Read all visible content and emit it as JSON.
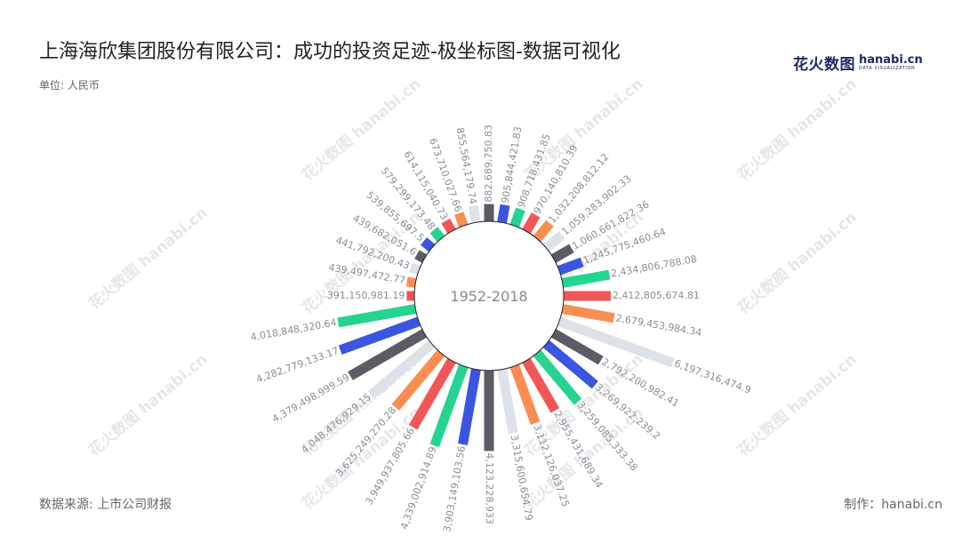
{
  "header": {
    "title": "上海海欣集团股份有限公司：成功的投资足迹-极坐标图-数据可视化",
    "unit": "单位: 人民币"
  },
  "logo": {
    "cn": "花火数图",
    "en": "hanabi.cn",
    "en_sub": "DATA VISUALIZATION"
  },
  "watermark": {
    "text": "花火数图 hanabi.cn"
  },
  "footer": {
    "source": "数据来源: 上市公司财报",
    "maker": "制作：hanabi.cn"
  },
  "colors": {
    "cycle": [
      "#5b5c66",
      "#3a55e0",
      "#24d48f",
      "#f25757",
      "#fa8e52",
      "#dde2ea"
    ],
    "center_circle": "#ffffff",
    "center_stroke": "#222222",
    "label": "#8c8e99",
    "watermark": "#e7e7ea"
  },
  "chart_data": {
    "type": "bar",
    "polar": true,
    "center_label": "1952-2018",
    "values": [
      882689750.83,
      905844421.83,
      908718431.85,
      970140810.39,
      1032208812.12,
      1059283902.33,
      1060661822.36,
      1245775460.64,
      2434806788.08,
      2412805674.81,
      2679453984.34,
      6197316474.9,
      2792200982.41,
      3269922239.2,
      3259085333.38,
      2955431689.34,
      3112126037.25,
      3315600654.79,
      4123228933,
      3903149103.56,
      4339002914.89,
      3949937805.66,
      3625249270.28,
      4048476929.15,
      4379498999.59,
      4282779133.17,
      4018848320.64,
      391150981.19,
      439497472.77,
      441792200.43,
      439682051.6,
      539855697.5,
      579299173.48,
      614115040.73,
      673710027.66,
      855564179.74
    ],
    "labels": [
      "882,689,750.83",
      "905,844,421.83",
      "908,718,431.85",
      "970,140,810.39",
      "1,032,208,812.12",
      "1,059,283,902.33",
      "1,060,661,822.36",
      "1,245,775,460.64",
      "2,434,806,788.08",
      "2,412,805,674.81",
      "2,679,453,984.34",
      "6,197,316,474.9",
      "2,792,200,982.41",
      "3,269,922,239.2",
      "3,259,085,333.38",
      "2,955,431,689.34",
      "3,112,126,037.25",
      "3,315,600,654.79",
      "4,123,228,933",
      "3,903,149,103.56",
      "4,339,002,914.89",
      "3,949,937,805.66",
      "3,625,249,270.28",
      "4,048,476,929.15",
      "4,379,498,999.59",
      "4,282,779,133.17",
      "4,018,848,320.64",
      "391,150,981.19",
      "439,497,472.77",
      "441,792,200.43",
      "439,682,051.6",
      "539,855,697.5",
      "579,299,173.48",
      "614,115,040.73",
      "673,710,027.66",
      "855,564,179.74"
    ]
  }
}
